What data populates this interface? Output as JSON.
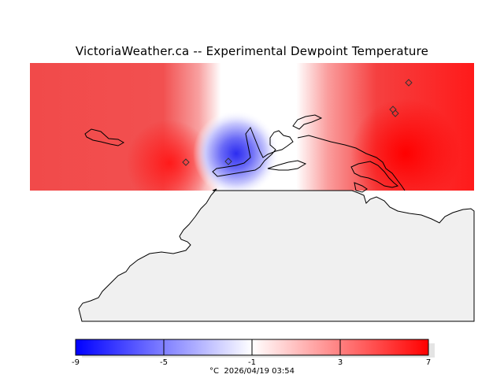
{
  "title": "VictoriaWeather.ca -- Experimental Dewpoint Temperature",
  "colorbar": {
    "ticks": [
      "-9",
      "-5",
      "-1",
      "3",
      "7"
    ],
    "units": "°C",
    "timestamp": "2026/04/19 03:54",
    "colors": {
      "low": "#0000ff",
      "mid": "#ffffff",
      "high": "#ff0000"
    }
  },
  "map_colors": {
    "land": "#f0f0f0",
    "coastline": "#000000"
  },
  "stations": [
    "station-west",
    "station-victoria",
    "station-north-1",
    "station-north-2",
    "station-vancouver"
  ]
}
